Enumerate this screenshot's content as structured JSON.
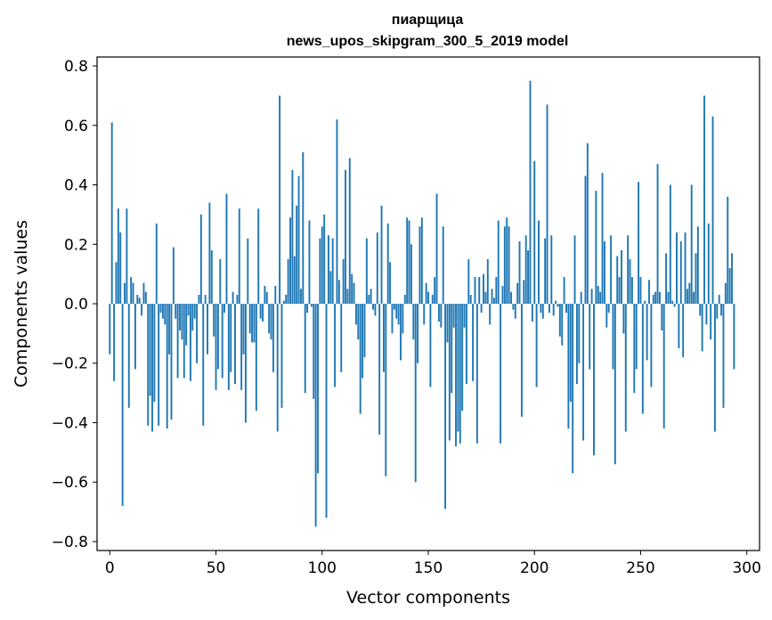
{
  "chart_data": {
    "type": "bar",
    "title": "пиарщица",
    "subtitle": "news_upos_skipgram_300_5_2019 model",
    "xlabel": "Vector components",
    "ylabel": "Components values",
    "xlim": [
      -6,
      306
    ],
    "ylim": [
      -0.83,
      0.83
    ],
    "xticks": [
      0,
      50,
      100,
      150,
      200,
      250,
      300
    ],
    "xtick_labels": [
      "0",
      "50",
      "100",
      "150",
      "200",
      "250",
      "300"
    ],
    "yticks": [
      -0.8,
      -0.6,
      -0.4,
      -0.2,
      0.0,
      0.2,
      0.4,
      0.6,
      0.8
    ],
    "ytick_labels": [
      "−0.8",
      "−0.6",
      "−0.4",
      "−0.2",
      "0.0",
      "0.2",
      "0.4",
      "0.6",
      "0.8"
    ],
    "grid": false,
    "bar_color": "#1f77b4",
    "values": [
      -0.17,
      0.61,
      -0.26,
      0.14,
      0.32,
      0.24,
      -0.68,
      0.07,
      0.32,
      -0.35,
      0.09,
      0.07,
      -0.22,
      0.03,
      0.02,
      -0.04,
      0.07,
      0.04,
      -0.41,
      -0.31,
      -0.43,
      -0.33,
      0.27,
      -0.41,
      -0.03,
      -0.05,
      -0.07,
      -0.42,
      -0.17,
      -0.39,
      0.19,
      -0.05,
      -0.25,
      -0.09,
      -0.12,
      -0.25,
      -0.14,
      -0.04,
      -0.26,
      -0.09,
      -0.05,
      -0.2,
      0.03,
      0.3,
      -0.41,
      0.03,
      -0.17,
      0.34,
      0.18,
      -0.11,
      -0.29,
      -0.22,
      0.15,
      -0.25,
      -0.03,
      0.37,
      -0.29,
      -0.23,
      0.04,
      -0.27,
      0.03,
      0.32,
      -0.29,
      -0.17,
      -0.4,
      0.22,
      -0.1,
      -0.13,
      -0.13,
      -0.36,
      0.32,
      -0.05,
      -0.06,
      0.06,
      0.04,
      -0.1,
      -0.12,
      -0.23,
      0.06,
      -0.43,
      0.7,
      -0.35,
      0.01,
      0.03,
      0.15,
      0.29,
      0.45,
      0.16,
      0.33,
      0.43,
      0.05,
      0.51,
      -0.3,
      -0.03,
      0.28,
      -0.01,
      -0.32,
      -0.75,
      -0.57,
      0.22,
      0.26,
      0.3,
      -0.72,
      0.23,
      0.11,
      0.22,
      -0.28,
      0.62,
      0.08,
      -0.23,
      0.15,
      0.45,
      0.05,
      0.49,
      0.1,
      0.07,
      -0.07,
      -0.12,
      -0.37,
      -0.25,
      -0.18,
      0.22,
      0.03,
      0.05,
      -0.02,
      -0.04,
      0.24,
      -0.44,
      0.33,
      -0.23,
      -0.58,
      0.27,
      0.14,
      -0.1,
      -0.02,
      -0.05,
      -0.07,
      -0.19,
      -0.1,
      0.03,
      0.29,
      0.28,
      0.2,
      -0.12,
      -0.6,
      -0.2,
      0.26,
      0.29,
      -0.07,
      0.07,
      0.04,
      -0.28,
      0.03,
      0.09,
      0.37,
      -0.06,
      -0.08,
      0.26,
      -0.69,
      -0.13,
      -0.46,
      -0.3,
      -0.08,
      -0.48,
      -0.43,
      -0.47,
      -0.36,
      -0.08,
      -0.27,
      0.15,
      0.03,
      -0.26,
      0.09,
      -0.47,
      0.09,
      -0.03,
      0.1,
      0.04,
      0.15,
      -0.07,
      0.05,
      0.02,
      0.09,
      0.28,
      -0.47,
      0.06,
      0.26,
      0.29,
      0.26,
      0.04,
      -0.02,
      -0.05,
      0.07,
      0.21,
      -0.38,
      0.08,
      0.23,
      0.18,
      0.75,
      -0.06,
      0.48,
      -0.28,
      0.28,
      -0.03,
      -0.05,
      0.22,
      0.67,
      -0.03,
      0.23,
      -0.04,
      0.01,
      -0.01,
      -0.11,
      -0.14,
      0.09,
      -0.03,
      -0.42,
      -0.33,
      -0.57,
      0.23,
      -0.27,
      -0.2,
      0.04,
      -0.46,
      0.43,
      0.54,
      -0.22,
      0.05,
      -0.51,
      0.38,
      0.06,
      0.04,
      0.44,
      0.21,
      -0.08,
      -0.03,
      0.23,
      -0.22,
      -0.54,
      0.16,
      0.09,
      0.18,
      -0.1,
      -0.43,
      0.23,
      0.15,
      0.09,
      -0.3,
      -0.22,
      0.41,
      0.09,
      -0.37,
      0.01,
      -0.19,
      0.08,
      -0.28,
      0.03,
      0.04,
      0.47,
      0.04,
      -0.09,
      -0.42,
      0.17,
      0.04,
      0.4,
      0.01,
      -0.01,
      0.24,
      -0.15,
      0.21,
      -0.18,
      0.24,
      0.05,
      0.07,
      0.4,
      0.04,
      0.17,
      0.26,
      -0.04,
      -0.16,
      0.7,
      -0.07,
      0.27,
      -0.12,
      0.63,
      -0.43,
      -0.05,
      0.03,
      -0.04,
      -0.35,
      0.07,
      0.36,
      0.12,
      0.17,
      -0.22
    ]
  }
}
